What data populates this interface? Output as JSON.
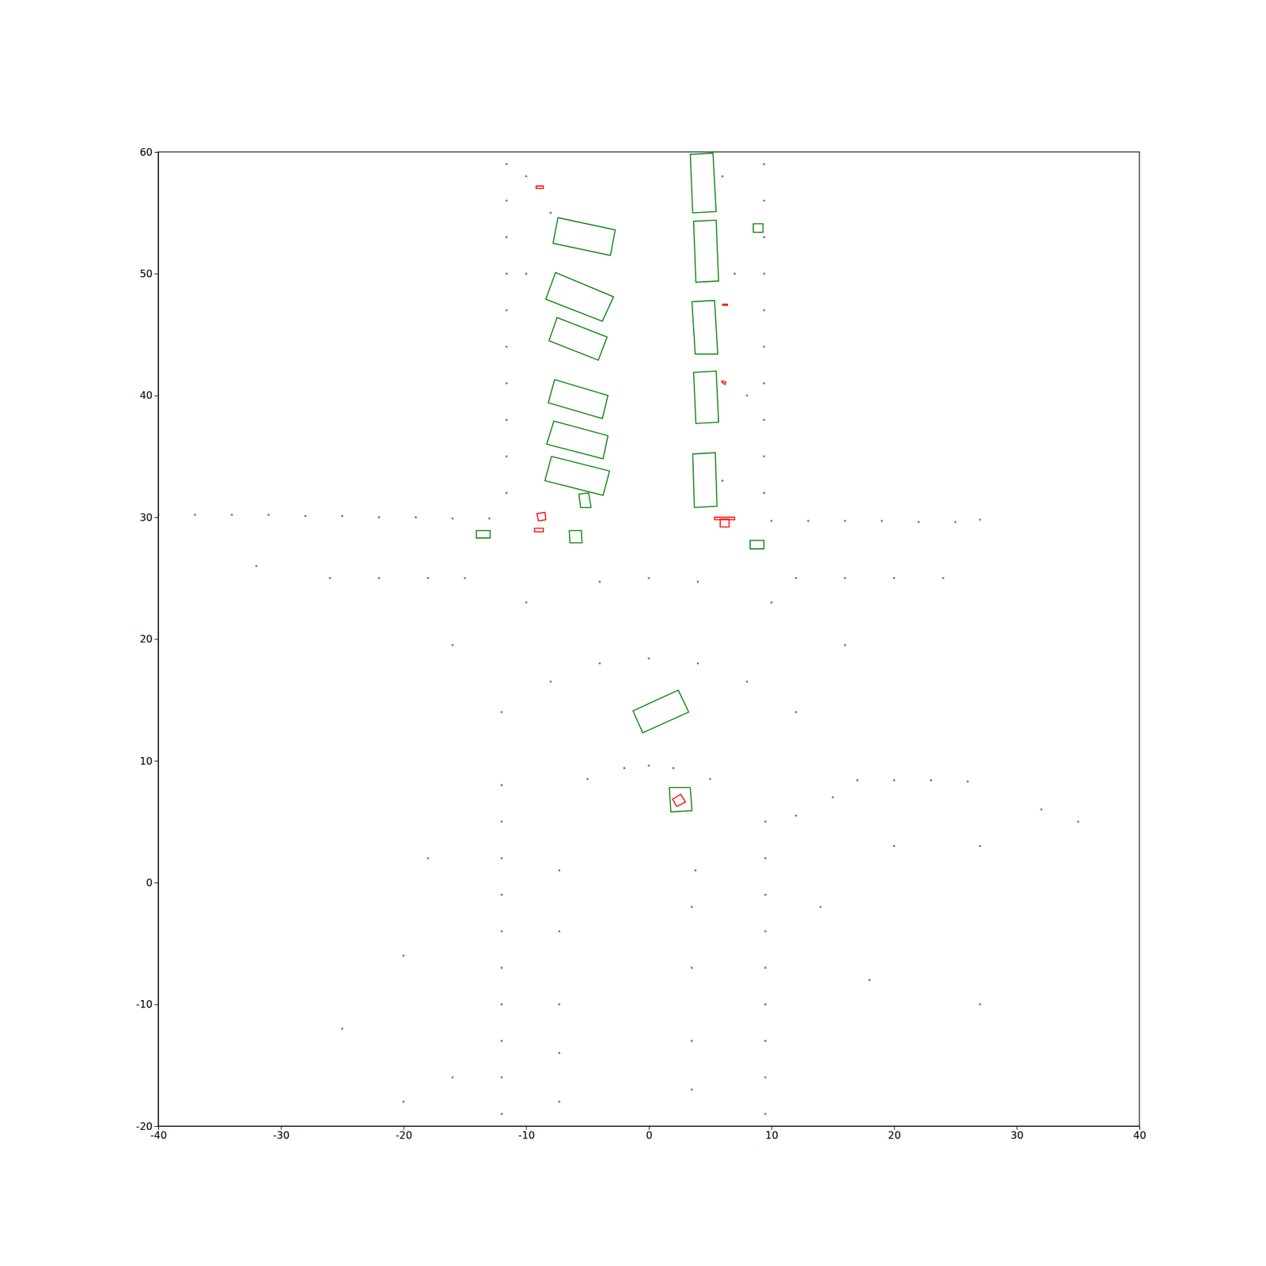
{
  "chart_data": {
    "type": "scatter",
    "xlim": [
      -40,
      40
    ],
    "ylim": [
      -20,
      60
    ],
    "xticks": [
      -40,
      -30,
      -20,
      -10,
      0,
      10,
      20,
      30,
      40
    ],
    "yticks": [
      -20,
      -10,
      0,
      10,
      20,
      30,
      40,
      50,
      60
    ],
    "grid": false,
    "series": [
      {
        "color": "#808080",
        "marker": "point",
        "x": [
          -40,
          -37,
          -34,
          -31,
          -28,
          -25,
          -22,
          -19,
          -16,
          -13,
          -11.6,
          -11.6,
          -11.6,
          -11.6,
          -11.6,
          -11.6,
          -11.6,
          -11.6,
          -11.6,
          -11.6,
          9.4,
          9.4,
          9.4,
          9.4,
          9.4,
          9.4,
          9.4,
          9.4,
          9.4,
          9.4,
          10,
          13,
          16,
          19,
          22,
          25,
          27,
          -12,
          -12,
          -12,
          -12,
          -12,
          -12,
          -12,
          -12,
          -12,
          -12,
          9.5,
          9.5,
          9.5,
          9.5,
          9.5,
          9.5,
          9.5,
          9.5,
          9.5,
          12,
          15,
          17,
          20,
          23,
          26,
          -7.3,
          -7.3,
          -7.3,
          -7.3,
          -7.3,
          3.5,
          3.5,
          3.5,
          3.5,
          3.8,
          -5,
          -2,
          0,
          2,
          5,
          -12,
          -8,
          -4,
          0,
          4,
          8,
          12,
          -16,
          -10,
          -4,
          0,
          4,
          10,
          16,
          -32,
          -26,
          -22,
          -18,
          -15,
          12,
          16,
          20,
          24,
          20,
          27,
          14,
          18,
          27,
          35,
          32,
          -20,
          -18,
          -16,
          -25,
          -20,
          -10,
          -10,
          -8,
          6,
          7,
          8,
          6
        ],
        "values": [
          30.2,
          30.2,
          30.2,
          30.2,
          30.1,
          30.1,
          30.0,
          30.0,
          29.9,
          29.9,
          32,
          35,
          38,
          41,
          44,
          47,
          50,
          53,
          56,
          59,
          32,
          35,
          38,
          41,
          44,
          47,
          50,
          53,
          56,
          59,
          29.7,
          29.7,
          29.7,
          29.7,
          29.6,
          29.6,
          29.8,
          -19,
          -16,
          -13,
          -10,
          -7,
          -4,
          -1,
          2,
          5,
          8,
          -19,
          -16,
          -13,
          -10,
          -7,
          -4,
          -1,
          2,
          5,
          5.5,
          7,
          8.4,
          8.4,
          8.4,
          8.3,
          -18,
          -14,
          -10,
          -4,
          1,
          -17,
          -13,
          -7,
          -2,
          1,
          8.5,
          9.4,
          9.6,
          9.4,
          8.5,
          14,
          16.5,
          18,
          18.4,
          18,
          16.5,
          14,
          19.5,
          23,
          24.7,
          25,
          24.7,
          23,
          19.5,
          26,
          25,
          25,
          25,
          25,
          25,
          25,
          25,
          25,
          3,
          3,
          -2,
          -8,
          -10,
          5,
          6,
          -6,
          2,
          -16,
          -12,
          -18,
          58,
          50,
          55,
          58,
          50,
          40,
          33
        ]
      }
    ],
    "boxes": [
      {
        "color": "#008000",
        "x": [
          3.38,
          5.23,
          5.49,
          3.58
        ],
        "y": [
          59.8,
          59.9,
          55.1,
          55.0
        ]
      },
      {
        "color": "#008000",
        "x": [
          3.65,
          5.49,
          5.69,
          3.84
        ],
        "y": [
          54.3,
          54.4,
          49.4,
          49.3
        ]
      },
      {
        "color": "#008000",
        "x": [
          3.52,
          5.36,
          5.62,
          3.78
        ],
        "y": [
          47.7,
          47.8,
          43.4,
          43.4
        ]
      },
      {
        "color": "#008000",
        "x": [
          3.65,
          5.49,
          5.69,
          3.84
        ],
        "y": [
          41.9,
          42.0,
          37.8,
          37.7
        ]
      },
      {
        "color": "#008000",
        "x": [
          3.58,
          5.42,
          5.56,
          3.71
        ],
        "y": [
          35.2,
          35.3,
          30.9,
          30.8
        ]
      },
      {
        "color": "#008000",
        "x": [
          -7.41,
          -2.74,
          -3.13,
          -7.81
        ],
        "y": [
          54.6,
          53.6,
          51.5,
          52.5
        ]
      },
      {
        "color": "#008000",
        "x": [
          -7.61,
          -2.87,
          -3.79,
          -8.4
        ],
        "y": [
          50.1,
          48.1,
          46.1,
          47.9
        ]
      },
      {
        "color": "#008000",
        "x": [
          -7.48,
          -3.4,
          -4.12,
          -8.14
        ],
        "y": [
          46.4,
          44.8,
          42.9,
          44.5
        ]
      },
      {
        "color": "#008000",
        "x": [
          -7.68,
          -3.33,
          -3.79,
          -8.2
        ],
        "y": [
          41.3,
          40.0,
          38.1,
          39.4
        ]
      },
      {
        "color": "#008000",
        "x": [
          -7.74,
          -3.33,
          -3.73,
          -8.33
        ],
        "y": [
          37.9,
          36.7,
          34.8,
          36.0
        ]
      },
      {
        "color": "#008000",
        "x": [
          -7.94,
          -3.2,
          -3.73,
          -8.47
        ],
        "y": [
          35.0,
          33.8,
          31.8,
          33.0
        ]
      },
      {
        "color": "#008000",
        "x": [
          -5.7,
          -4.91,
          -4.71,
          -5.57
        ],
        "y": [
          31.9,
          32.0,
          30.8,
          30.8
        ]
      },
      {
        "color": "#008000",
        "x": [
          -6.49,
          -5.5,
          -5.44,
          -6.43
        ],
        "y": [
          28.9,
          28.9,
          27.9,
          27.9
        ]
      },
      {
        "color": "#008000",
        "x": [
          -14.06,
          -12.94,
          -12.94,
          -14.06
        ],
        "y": [
          28.9,
          28.9,
          28.3,
          28.3
        ]
      },
      {
        "color": "#008000",
        "x": [
          8.52,
          9.31,
          9.31,
          8.52
        ],
        "y": [
          54.1,
          54.1,
          53.4,
          53.4
        ]
      },
      {
        "color": "#008000",
        "x": [
          8.26,
          9.38,
          9.38,
          8.26
        ],
        "y": [
          28.1,
          28.1,
          27.4,
          27.4
        ]
      },
      {
        "color": "#008000",
        "x": [
          -1.29,
          2.4,
          3.25,
          -0.5
        ],
        "y": [
          14.1,
          15.8,
          14.0,
          12.3
        ]
      },
      {
        "color": "#008000",
        "x": [
          1.67,
          3.38,
          3.52,
          1.8
        ],
        "y": [
          7.8,
          7.8,
          5.9,
          5.8
        ]
      },
      {
        "color": "#ff0000",
        "x": [
          -9.19,
          -8.6,
          -8.6,
          -9.19
        ],
        "y": [
          57.2,
          57.2,
          57.0,
          57.0
        ]
      },
      {
        "color": "#ff0000",
        "x": [
          -9.13,
          -8.47,
          -8.4,
          -9.0
        ],
        "y": [
          30.3,
          30.4,
          29.8,
          29.7
        ]
      },
      {
        "color": "#ff0000",
        "x": [
          -9.32,
          -8.6,
          -8.6,
          -9.32
        ],
        "y": [
          29.1,
          29.1,
          28.8,
          28.8
        ]
      },
      {
        "color": "#ff0000",
        "x": [
          5.36,
          7.0,
          7.0,
          5.36
        ],
        "y": [
          30.0,
          30.0,
          29.8,
          29.8
        ]
      },
      {
        "color": "#ff0000",
        "x": [
          5.82,
          6.54,
          6.54,
          5.82
        ],
        "y": [
          29.85,
          29.85,
          29.2,
          29.2
        ]
      },
      {
        "color": "#ff0000",
        "x": [
          6.02,
          6.41,
          6.41,
          6.02
        ],
        "y": [
          47.5,
          47.5,
          47.4,
          47.4
        ]
      },
      {
        "color": "#ff0000",
        "x": [
          5.95,
          6.28,
          6.21,
          5.95
        ],
        "y": [
          41.2,
          41.1,
          40.9,
          41.1
        ]
      },
      {
        "color": "#ff0000",
        "x": [
          1.94,
          2.6,
          2.99,
          2.27
        ],
        "y": [
          6.85,
          7.25,
          6.6,
          6.25
        ]
      }
    ]
  }
}
